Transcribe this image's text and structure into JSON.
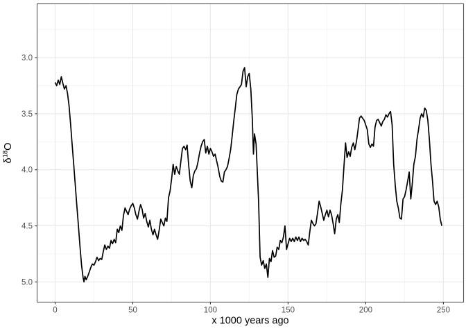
{
  "figure": {
    "background_color": "#ffffff"
  },
  "chart_data": {
    "type": "line",
    "title": "",
    "xlabel": "x 1000 years ago",
    "ylabel": "δ18O",
    "ylabel_parts": {
      "symbol": "δ",
      "superscript": "18",
      "suffix": "O"
    },
    "x_ticks": [
      0,
      50,
      100,
      150,
      200,
      250
    ],
    "x_minor_gridlines": [
      25,
      75,
      125,
      175,
      225
    ],
    "y_ticks": [
      "3.0",
      "3.5",
      "4.0",
      "4.5",
      "5.0"
    ],
    "y_tick_values": [
      3.0,
      3.5,
      4.0,
      4.5,
      5.0
    ],
    "y_minor_gridlines": [
      2.75,
      3.25,
      3.75,
      4.25,
      4.75
    ],
    "xlim": [
      -11.6,
      263.0
    ],
    "ylim": [
      2.52,
      5.18
    ],
    "y_increases_downward": true,
    "grid": true,
    "legend": false,
    "colors": {
      "line": "#000000",
      "panel_border": "#555555",
      "grid_major": "#e8e8e8",
      "grid_minor": "#f4f4f4",
      "tick_mark": "#333333",
      "tick_label": "#4d4d4d",
      "axis_title": "#000000",
      "panel_background": "#ffffff"
    },
    "series": [
      {
        "name": "d18O",
        "points": [
          [
            0,
            3.22
          ],
          [
            1,
            3.25
          ],
          [
            2,
            3.2
          ],
          [
            3,
            3.24
          ],
          [
            4,
            3.17
          ],
          [
            5,
            3.23
          ],
          [
            6,
            3.28
          ],
          [
            7,
            3.25
          ],
          [
            8,
            3.32
          ],
          [
            9,
            3.43
          ],
          [
            10,
            3.6
          ],
          [
            11,
            3.78
          ],
          [
            12,
            3.96
          ],
          [
            13,
            4.14
          ],
          [
            14,
            4.32
          ],
          [
            15,
            4.5
          ],
          [
            16,
            4.68
          ],
          [
            17,
            4.85
          ],
          [
            18,
            4.96
          ],
          [
            18.6,
            5.0
          ],
          [
            19.2,
            4.95
          ],
          [
            20,
            4.98
          ],
          [
            21,
            4.95
          ],
          [
            22,
            4.91
          ],
          [
            23,
            4.87
          ],
          [
            24,
            4.84
          ],
          [
            25,
            4.85
          ],
          [
            26,
            4.82
          ],
          [
            27,
            4.78
          ],
          [
            28,
            4.81
          ],
          [
            29,
            4.79
          ],
          [
            30,
            4.8
          ],
          [
            31,
            4.73
          ],
          [
            32,
            4.67
          ],
          [
            33,
            4.71
          ],
          [
            34,
            4.68
          ],
          [
            35,
            4.7
          ],
          [
            36,
            4.63
          ],
          [
            37,
            4.66
          ],
          [
            38,
            4.62
          ],
          [
            39,
            4.65
          ],
          [
            40,
            4.53
          ],
          [
            41,
            4.56
          ],
          [
            42,
            4.5
          ],
          [
            43,
            4.54
          ],
          [
            44,
            4.41
          ],
          [
            45,
            4.34
          ],
          [
            46,
            4.37
          ],
          [
            47,
            4.4
          ],
          [
            48,
            4.35
          ],
          [
            49,
            4.32
          ],
          [
            50,
            4.3
          ],
          [
            51,
            4.34
          ],
          [
            52,
            4.4
          ],
          [
            53,
            4.44
          ],
          [
            54,
            4.37
          ],
          [
            55,
            4.31
          ],
          [
            56,
            4.35
          ],
          [
            57,
            4.43
          ],
          [
            58,
            4.39
          ],
          [
            59,
            4.46
          ],
          [
            60,
            4.51
          ],
          [
            61,
            4.45
          ],
          [
            62,
            4.53
          ],
          [
            63,
            4.58
          ],
          [
            64,
            4.53
          ],
          [
            65,
            4.58
          ],
          [
            66,
            4.62
          ],
          [
            67,
            4.54
          ],
          [
            68,
            4.44
          ],
          [
            69,
            4.47
          ],
          [
            70,
            4.5
          ],
          [
            71,
            4.43
          ],
          [
            72,
            4.46
          ],
          [
            73,
            4.25
          ],
          [
            74,
            4.19
          ],
          [
            75,
            4.08
          ],
          [
            76,
            3.95
          ],
          [
            77,
            4.04
          ],
          [
            78,
            3.97
          ],
          [
            79,
            4.01
          ],
          [
            80,
            4.04
          ],
          [
            81,
            3.92
          ],
          [
            82,
            3.81
          ],
          [
            83,
            3.79
          ],
          [
            84,
            3.82
          ],
          [
            85,
            3.78
          ],
          [
            86,
            3.96
          ],
          [
            87,
            4.1
          ],
          [
            88,
            4.16
          ],
          [
            89,
            4.05
          ],
          [
            90,
            4.01
          ],
          [
            91,
            3.99
          ],
          [
            92,
            3.93
          ],
          [
            93,
            3.85
          ],
          [
            94,
            3.79
          ],
          [
            95,
            3.75
          ],
          [
            96,
            3.73
          ],
          [
            97,
            3.85
          ],
          [
            98,
            3.79
          ],
          [
            99,
            3.86
          ],
          [
            100,
            3.81
          ],
          [
            101,
            3.84
          ],
          [
            102,
            3.88
          ],
          [
            103,
            3.86
          ],
          [
            104,
            3.92
          ],
          [
            105,
            3.98
          ],
          [
            106,
            4.06
          ],
          [
            107,
            4.1
          ],
          [
            108,
            4.11
          ],
          [
            109,
            4.02
          ],
          [
            110,
            4.0
          ],
          [
            111,
            3.97
          ],
          [
            112,
            3.9
          ],
          [
            113,
            3.82
          ],
          [
            114,
            3.7
          ],
          [
            115,
            3.57
          ],
          [
            116,
            3.45
          ],
          [
            117,
            3.33
          ],
          [
            118,
            3.28
          ],
          [
            119,
            3.26
          ],
          [
            120,
            3.24
          ],
          [
            121,
            3.12
          ],
          [
            122,
            3.09
          ],
          [
            123,
            3.26
          ],
          [
            124,
            3.17
          ],
          [
            125,
            3.14
          ],
          [
            126,
            3.28
          ],
          [
            127,
            3.55
          ],
          [
            127.7,
            3.86
          ],
          [
            128.4,
            3.68
          ],
          [
            129.4,
            3.77
          ],
          [
            131,
            4.28
          ],
          [
            132,
            4.78
          ],
          [
            133,
            4.85
          ],
          [
            134,
            4.81
          ],
          [
            135,
            4.88
          ],
          [
            136,
            4.84
          ],
          [
            137,
            4.96
          ],
          [
            138,
            4.79
          ],
          [
            139,
            4.82
          ],
          [
            140,
            4.72
          ],
          [
            141,
            4.78
          ],
          [
            142,
            4.77
          ],
          [
            143,
            4.69
          ],
          [
            144,
            4.71
          ],
          [
            145,
            4.63
          ],
          [
            146,
            4.65
          ],
          [
            147,
            4.6
          ],
          [
            148,
            4.5
          ],
          [
            149,
            4.71
          ],
          [
            150,
            4.66
          ],
          [
            151,
            4.61
          ],
          [
            152,
            4.64
          ],
          [
            153,
            4.61
          ],
          [
            154,
            4.64
          ],
          [
            155,
            4.6
          ],
          [
            156,
            4.63
          ],
          [
            157,
            4.6
          ],
          [
            158,
            4.64
          ],
          [
            159,
            4.61
          ],
          [
            160,
            4.63
          ],
          [
            161,
            4.62
          ],
          [
            162,
            4.64
          ],
          [
            163,
            4.67
          ],
          [
            164,
            4.55
          ],
          [
            165,
            4.45
          ],
          [
            166,
            4.48
          ],
          [
            167,
            4.5
          ],
          [
            168,
            4.48
          ],
          [
            169,
            4.38
          ],
          [
            170,
            4.28
          ],
          [
            171,
            4.33
          ],
          [
            172,
            4.39
          ],
          [
            173,
            4.45
          ],
          [
            174,
            4.4
          ],
          [
            175,
            4.36
          ],
          [
            176,
            4.42
          ],
          [
            177,
            4.36
          ],
          [
            178,
            4.4
          ],
          [
            179,
            4.48
          ],
          [
            180,
            4.57
          ],
          [
            181,
            4.44
          ],
          [
            182,
            4.4
          ],
          [
            183,
            4.47
          ],
          [
            184,
            4.3
          ],
          [
            185,
            4.18
          ],
          [
            186,
            3.97
          ],
          [
            187,
            3.76
          ],
          [
            188,
            3.89
          ],
          [
            189,
            3.84
          ],
          [
            190,
            3.88
          ],
          [
            191,
            3.8
          ],
          [
            192,
            3.76
          ],
          [
            193,
            3.82
          ],
          [
            194,
            3.75
          ],
          [
            195,
            3.65
          ],
          [
            196,
            3.54
          ],
          [
            197,
            3.52
          ],
          [
            198,
            3.54
          ],
          [
            199,
            3.56
          ],
          [
            200,
            3.6
          ],
          [
            201,
            3.64
          ],
          [
            202,
            3.77
          ],
          [
            203,
            3.8
          ],
          [
            204,
            3.77
          ],
          [
            205,
            3.79
          ],
          [
            206,
            3.62
          ],
          [
            207,
            3.56
          ],
          [
            208,
            3.55
          ],
          [
            209,
            3.58
          ],
          [
            210,
            3.61
          ],
          [
            211,
            3.57
          ],
          [
            212,
            3.55
          ],
          [
            213,
            3.51
          ],
          [
            214,
            3.53
          ],
          [
            215,
            3.5
          ],
          [
            216,
            3.48
          ],
          [
            217,
            3.6
          ],
          [
            218,
            3.95
          ],
          [
            219,
            4.14
          ],
          [
            220,
            4.28
          ],
          [
            221,
            4.34
          ],
          [
            222,
            4.43
          ],
          [
            223,
            4.44
          ],
          [
            224,
            4.26
          ],
          [
            225,
            4.24
          ],
          [
            226,
            4.18
          ],
          [
            227,
            4.1
          ],
          [
            228,
            4.02
          ],
          [
            229,
            4.26
          ],
          [
            230,
            4.12
          ],
          [
            231,
            3.95
          ],
          [
            232,
            3.88
          ],
          [
            233,
            3.73
          ],
          [
            234,
            3.64
          ],
          [
            235,
            3.54
          ],
          [
            236,
            3.5
          ],
          [
            237,
            3.53
          ],
          [
            238,
            3.45
          ],
          [
            239,
            3.47
          ],
          [
            240,
            3.56
          ],
          [
            241,
            3.73
          ],
          [
            242,
            3.95
          ],
          [
            243,
            4.1
          ],
          [
            244,
            4.28
          ],
          [
            245,
            4.31
          ],
          [
            246,
            4.28
          ],
          [
            247,
            4.33
          ],
          [
            248,
            4.44
          ],
          [
            249,
            4.5
          ]
        ]
      }
    ]
  }
}
